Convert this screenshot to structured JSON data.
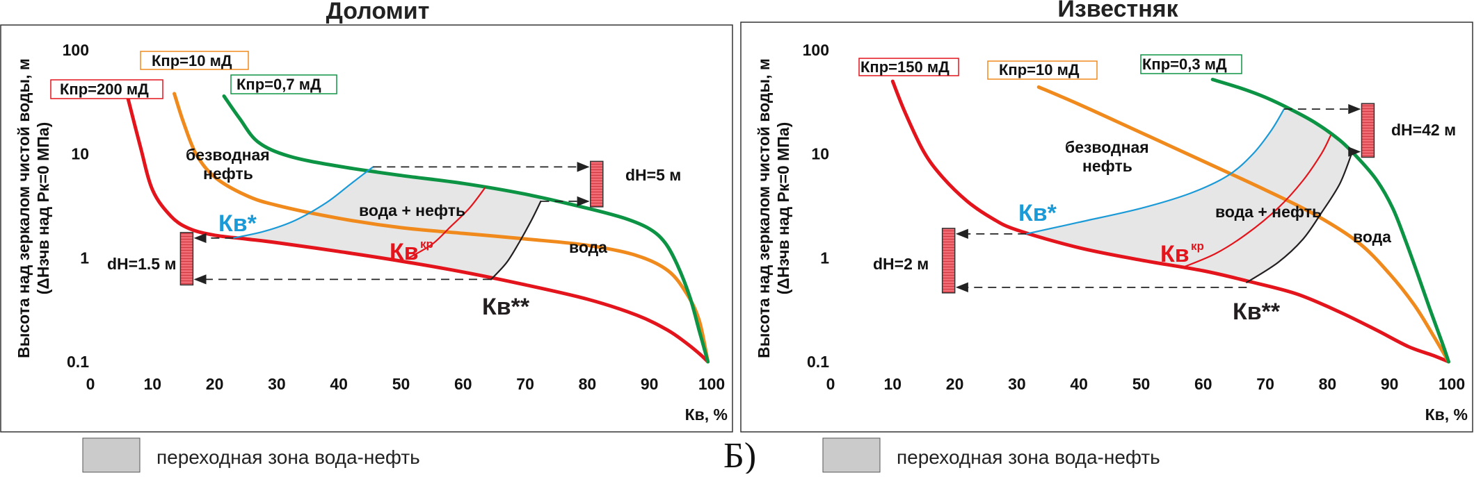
{
  "section_label": "Б)",
  "legend": {
    "label": "переходная зона вода-нефть",
    "color": "#cbcbcb"
  },
  "colors": {
    "red": "#e3141b",
    "orange": "#f08a1c",
    "green": "#0c9444",
    "blue": "#1a9ad6",
    "black": "#231f20",
    "zone": "#e6e6e6"
  },
  "chart_data": [
    {
      "type": "line",
      "title": "Доломит",
      "xlabel": "Кв, %",
      "ylabel_line1": "Высота над зеркалом чистой воды, м",
      "ylabel_line2": "(ΔHзчв над Pк=0 МПа)",
      "xlim": [
        0,
        100
      ],
      "ylim": [
        0.1,
        100
      ],
      "y_scale": "log",
      "x_ticks": [
        "0",
        "10",
        "20",
        "30",
        "40",
        "50",
        "60",
        "70",
        "80",
        "90",
        "100"
      ],
      "y_ticks": [
        "100",
        "10",
        "1",
        "0.1"
      ],
      "series": [
        {
          "name": "Кпр=200 мД",
          "color": "red",
          "x": [
            6,
            8,
            10,
            13,
            16,
            20,
            25,
            30,
            40,
            50,
            60,
            70,
            80,
            88,
            93,
            96,
            98,
            99.4
          ],
          "y": [
            35,
            12,
            4.5,
            2.5,
            1.9,
            1.65,
            1.52,
            1.4,
            1.15,
            0.93,
            0.73,
            0.55,
            0.4,
            0.28,
            0.2,
            0.15,
            0.12,
            0.1
          ]
        },
        {
          "name": "Кпр=10 мД",
          "color": "orange",
          "x": [
            13.5,
            15,
            17,
            20,
            25,
            30,
            40,
            50,
            60,
            70,
            80,
            88,
            93,
            96,
            98,
            99.4
          ],
          "y": [
            38,
            20,
            10,
            6,
            4,
            3.2,
            2.4,
            1.95,
            1.72,
            1.52,
            1.32,
            1.05,
            0.75,
            0.45,
            0.25,
            0.1
          ]
        },
        {
          "name": "Кпр=0,7 мД",
          "color": "green",
          "x": [
            21.5,
            24,
            27,
            32,
            40,
            50,
            60,
            70,
            80,
            86,
            90,
            92.5,
            94.5,
            96.5,
            98,
            99.4
          ],
          "y": [
            36,
            22,
            13,
            9.5,
            7.6,
            6.2,
            5.2,
            4.1,
            3,
            2.4,
            1.9,
            1.4,
            0.85,
            0.42,
            0.2,
            0.1
          ]
        },
        {
          "name": "Кв*",
          "color": "blue",
          "x": [
            23,
            28,
            33,
            38,
            42,
            45.5
          ],
          "y": [
            1.55,
            1.8,
            2.3,
            3.4,
            5.2,
            7.5
          ]
        },
        {
          "name": "Кв^кр",
          "color": "red",
          "x": [
            51,
            55,
            58,
            61,
            63.5
          ],
          "y": [
            0.98,
            1.35,
            2.0,
            3.0,
            4.7
          ]
        },
        {
          "name": "Кв**",
          "color": "black",
          "x": [
            64.5,
            67,
            69,
            71,
            72.5
          ],
          "y": [
            0.62,
            0.9,
            1.4,
            2.3,
            3.5
          ]
        }
      ],
      "zone_label": "вода + нефть",
      "region_labels": [
        "безводная",
        "нефть",
        "вода"
      ],
      "markers": [
        "Кв*",
        "Кв",
        "кр",
        "Кв**"
      ],
      "legend_boxes": [
        {
          "label": "Кпр=200 мД",
          "color": "red"
        },
        {
          "label": "Кпр=10 мД",
          "color": "orange"
        },
        {
          "label": "Кпр=0,7 мД",
          "color": "green"
        }
      ],
      "dH": [
        {
          "label": "dH=5 м",
          "x": 81.5,
          "y_top": 7.5,
          "y_bottom": 3.5
        },
        {
          "label": "dH=1.5 м",
          "x": 15.5,
          "y_top": 1.55,
          "y_bottom": 0.62
        }
      ]
    },
    {
      "type": "line",
      "title": "Известняк",
      "xlabel": "Кв, %",
      "ylabel_line1": "Высота над зеркалом чистой воды, м",
      "ylabel_line2": "(ΔHзчв над Pк=0 МПа)",
      "xlim": [
        0,
        100
      ],
      "ylim": [
        0.1,
        100
      ],
      "y_scale": "log",
      "x_ticks": [
        "0",
        "10",
        "20",
        "30",
        "40",
        "50",
        "60",
        "70",
        "80",
        "90",
        "100"
      ],
      "y_ticks": [
        "100",
        "10",
        "1",
        "0.1"
      ],
      "series": [
        {
          "name": "Кпр=150 мД",
          "color": "red",
          "x": [
            10,
            12,
            15,
            18,
            22,
            26,
            30,
            40,
            50,
            60,
            67,
            75,
            82,
            88,
            93,
            97,
            99.5
          ],
          "y": [
            50,
            25,
            10.5,
            6,
            3.5,
            2.4,
            1.85,
            1.25,
            0.95,
            0.75,
            0.6,
            0.45,
            0.3,
            0.2,
            0.14,
            0.115,
            0.1
          ]
        },
        {
          "name": "Кпр=10 мД",
          "color": "orange",
          "x": [
            33.5,
            40,
            50,
            60,
            70,
            78,
            85,
            90,
            94,
            97,
            99.5
          ],
          "y": [
            44,
            30,
            16,
            8.5,
            4.5,
            2.6,
            1.4,
            0.7,
            0.35,
            0.18,
            0.1
          ]
        },
        {
          "name": "Кпр=0,3 мД",
          "color": "green",
          "x": [
            61.5,
            66,
            70,
            74,
            78,
            82,
            85,
            88,
            90.5,
            92.5,
            94.5,
            96.5,
            98.5,
            99.5
          ],
          "y": [
            52,
            43,
            35,
            27,
            20,
            13.5,
            9,
            5.5,
            3,
            1.5,
            0.7,
            0.32,
            0.15,
            0.1
          ]
        },
        {
          "name": "Кв*",
          "color": "blue",
          "x": [
            31.5,
            40,
            50,
            58,
            64,
            68,
            71,
            73
          ],
          "y": [
            1.7,
            2.2,
            3.0,
            4.2,
            6.2,
            10,
            17,
            27
          ]
        },
        {
          "name": "Кв^кр",
          "color": "red",
          "x": [
            56.5,
            62,
            67,
            72,
            76,
            79,
            80.5
          ],
          "y": [
            0.8,
            1.1,
            1.7,
            3.0,
            5.5,
            10,
            15
          ]
        },
        {
          "name": "Кв**",
          "color": "black",
          "x": [
            67,
            72,
            76,
            79,
            82,
            84
          ],
          "y": [
            0.58,
            0.9,
            1.5,
            2.7,
            5.2,
            10.5
          ]
        }
      ],
      "zone_label": "вода + нефть",
      "region_labels": [
        "безводная",
        "нефть",
        "вода"
      ],
      "markers": [
        "Кв*",
        "Кв",
        "кр",
        "Кв**"
      ],
      "legend_boxes": [
        {
          "label": "Кпр=150 мД",
          "color": "red"
        },
        {
          "label": "Кпр=10 мД",
          "color": "orange"
        },
        {
          "label": "Кпр=0,3 мД",
          "color": "green"
        }
      ],
      "dH": [
        {
          "label": "dH=42 м",
          "x": 86.5,
          "y_top": 27,
          "y_bottom": 10.5
        },
        {
          "label": "dH=2 м",
          "x": 19,
          "y_top": 1.7,
          "y_bottom": 0.52
        }
      ]
    }
  ]
}
